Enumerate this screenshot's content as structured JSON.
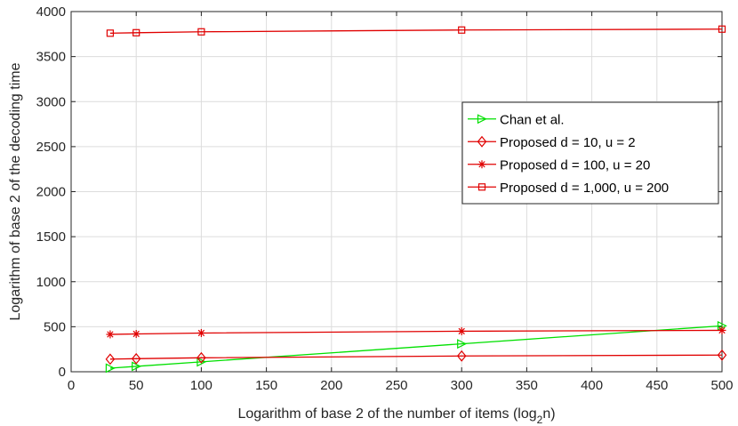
{
  "chart_data": {
    "type": "line",
    "title": "",
    "xlabel": "Logarithm of base 2 of the number of items (log",
    "xlabel_sub": "2",
    "xlabel_end": "n)",
    "ylabel": "Logarithm of base 2 of the decoding time",
    "xlim": [
      0,
      500
    ],
    "ylim": [
      0,
      4000
    ],
    "xticks": [
      0,
      50,
      100,
      150,
      200,
      250,
      300,
      350,
      400,
      450,
      500
    ],
    "yticks": [
      0,
      500,
      1000,
      1500,
      2000,
      2500,
      3000,
      3500,
      4000
    ],
    "grid": true,
    "legend_position": "center-right",
    "series": [
      {
        "name": "Chan et al.",
        "color": "#00e000",
        "marker": "triangle-right",
        "x": [
          30,
          50,
          100,
          300,
          500
        ],
        "y": [
          40,
          60,
          110,
          310,
          510
        ]
      },
      {
        "name": "Proposed d = 10, u = 2",
        "color": "#e00000",
        "marker": "diamond",
        "x": [
          30,
          50,
          100,
          300,
          500
        ],
        "y": [
          140,
          145,
          155,
          175,
          185
        ]
      },
      {
        "name": "Proposed d = 100, u = 20",
        "color": "#e00000",
        "marker": "asterisk",
        "x": [
          30,
          50,
          100,
          300,
          500
        ],
        "y": [
          415,
          420,
          430,
          450,
          460
        ]
      },
      {
        "name": "Proposed  d = 1,000, u = 200",
        "color": "#e00000",
        "marker": "square",
        "x": [
          30,
          50,
          100,
          300,
          500
        ],
        "y": [
          3760,
          3765,
          3775,
          3795,
          3805
        ]
      }
    ]
  }
}
